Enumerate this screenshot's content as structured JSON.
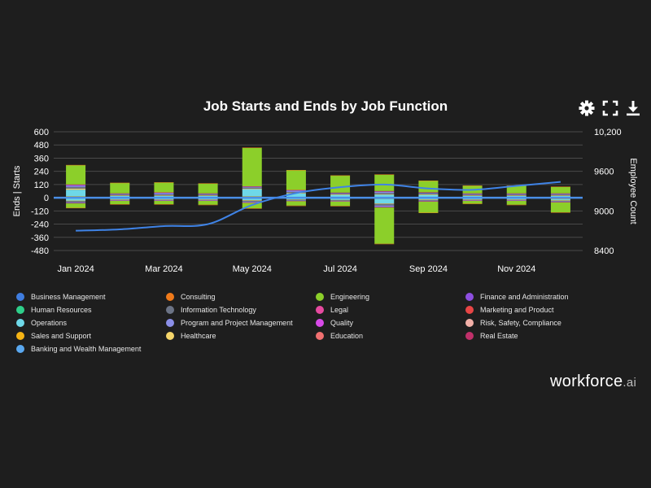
{
  "toolbar": {
    "settings_icon": "gear-icon",
    "fullscreen_icon": "expand-icon",
    "download_icon": "download-icon"
  },
  "colors": {
    "background": "#1e1e1e",
    "grid": "#4a4a4a",
    "zero_line": "#4a8fe7",
    "trend_line": "#3f83e6",
    "text": "#ffffff"
  },
  "brand": {
    "name": "workforce",
    "suffix": ".ai"
  },
  "chart_data": {
    "type": "bar",
    "title": "Job Starts and Ends by Job Function",
    "ylabel": "Ends | Starts",
    "y2label": "Employee Count",
    "ylim": [
      -480,
      600
    ],
    "y_ticks": [
      600,
      480,
      360,
      240,
      120,
      0,
      -120,
      -240,
      -360,
      -480
    ],
    "y_tick_labels": [
      "600",
      "480",
      "360",
      "240",
      "120",
      "0",
      "-120",
      "-240",
      "-360",
      "-480"
    ],
    "y2lim": [
      8400,
      10200
    ],
    "y2_ticks": [
      10200,
      9600,
      9000,
      8400
    ],
    "y2_tick_labels": [
      "10,200",
      "9600",
      "9000",
      "8400"
    ],
    "categories": [
      "Jan 2024",
      "Feb 2024",
      "Mar 2024",
      "Apr 2024",
      "May 2024",
      "Jun 2024",
      "Jul 2024",
      "Aug 2024",
      "Sep 2024",
      "Oct 2024",
      "Nov 2024",
      "Dec 2024"
    ],
    "x_tick_labels": [
      {
        "index": 0,
        "label": "Jan 2024"
      },
      {
        "index": 2,
        "label": "Mar 2024"
      },
      {
        "index": 4,
        "label": "May 2024"
      },
      {
        "index": 6,
        "label": "Jul 2024"
      },
      {
        "index": 8,
        "label": "Sep 2024"
      },
      {
        "index": 10,
        "label": "Nov 2024"
      }
    ],
    "legend": [
      {
        "name": "Business Management",
        "color": "#3f7de0"
      },
      {
        "name": "Consulting",
        "color": "#f07a1a"
      },
      {
        "name": "Engineering",
        "color": "#8ccf2a"
      },
      {
        "name": "Finance and Administration",
        "color": "#8e4fe0"
      },
      {
        "name": "Human Resources",
        "color": "#2ecf8a"
      },
      {
        "name": "Information Technology",
        "color": "#6b7385"
      },
      {
        "name": "Legal",
        "color": "#e64aa0"
      },
      {
        "name": "Marketing and Product",
        "color": "#e84545"
      },
      {
        "name": "Operations",
        "color": "#6ed8e8"
      },
      {
        "name": "Program and Project Management",
        "color": "#8b8fe8"
      },
      {
        "name": "Quality",
        "color": "#d84ae8"
      },
      {
        "name": "Risk, Safety, Compliance",
        "color": "#f2b0a8"
      },
      {
        "name": "Sales and Support",
        "color": "#f5b314"
      },
      {
        "name": "Healthcare",
        "color": "#f5d56a"
      },
      {
        "name": "Education",
        "color": "#f07070"
      },
      {
        "name": "Real Estate",
        "color": "#c0306a"
      },
      {
        "name": "Banking and Wealth Management",
        "color": "#5aa8f0"
      }
    ],
    "series": [
      {
        "name": "Business Management",
        "starts": [
          5,
          3,
          3,
          3,
          8,
          5,
          3,
          5,
          3,
          3,
          3,
          3
        ],
        "ends": [
          -3,
          -2,
          -2,
          -2,
          -5,
          -3,
          -3,
          -8,
          -3,
          -2,
          -2,
          -10
        ]
      },
      {
        "name": "Sales and Support",
        "starts": [
          8,
          3,
          3,
          3,
          5,
          3,
          3,
          3,
          3,
          3,
          3,
          3
        ],
        "ends": [
          -3,
          -2,
          -2,
          -2,
          -3,
          -2,
          -2,
          -3,
          -3,
          -2,
          -2,
          -3
        ]
      },
      {
        "name": "Operations",
        "starts": [
          60,
          10,
          10,
          10,
          65,
          30,
          20,
          20,
          20,
          10,
          10,
          10
        ],
        "ends": [
          -20,
          -10,
          -10,
          -10,
          -15,
          -10,
          -15,
          -40,
          -10,
          -10,
          -10,
          -10
        ]
      },
      {
        "name": "Healthcare",
        "starts": [
          10,
          5,
          5,
          5,
          5,
          5,
          5,
          5,
          5,
          5,
          5,
          5
        ],
        "ends": [
          -5,
          -3,
          -3,
          -3,
          -5,
          -3,
          -3,
          -5,
          -5,
          -3,
          -3,
          -5
        ]
      },
      {
        "name": "Information Technology",
        "starts": [
          15,
          8,
          10,
          8,
          10,
          10,
          5,
          10,
          8,
          8,
          8,
          8
        ],
        "ends": [
          -10,
          -5,
          -5,
          -5,
          -8,
          -5,
          -5,
          -15,
          -5,
          -5,
          -5,
          -5
        ]
      },
      {
        "name": "Program and Project Management",
        "starts": [
          10,
          5,
          10,
          5,
          5,
          10,
          5,
          10,
          5,
          5,
          5,
          5
        ],
        "ends": [
          -5,
          -3,
          -3,
          -3,
          -5,
          -5,
          -3,
          -10,
          -5,
          -3,
          -3,
          -5
        ]
      },
      {
        "name": "Finance and Administration",
        "starts": [
          8,
          3,
          5,
          3,
          3,
          5,
          3,
          5,
          3,
          3,
          3,
          3
        ],
        "ends": [
          -3,
          -2,
          -2,
          -2,
          -3,
          -2,
          -2,
          -5,
          -2,
          -2,
          -2,
          -2
        ]
      },
      {
        "name": "Marketing and Product",
        "starts": [
          5,
          3,
          3,
          3,
          3,
          3,
          3,
          3,
          3,
          3,
          3,
          3
        ],
        "ends": [
          -3,
          -2,
          -2,
          -2,
          -3,
          -2,
          -2,
          -3,
          -3,
          -2,
          -2,
          -3
        ]
      },
      {
        "name": "Engineering",
        "starts": [
          175,
          95,
          90,
          90,
          350,
          180,
          155,
          150,
          105,
          70,
          70,
          60
        ],
        "ends": [
          -40,
          -30,
          -30,
          -35,
          -50,
          -40,
          -40,
          -330,
          -100,
          -25,
          -35,
          -90
        ]
      },
      {
        "name": "Consulting",
        "starts": [
          2,
          1,
          1,
          1,
          2,
          1,
          1,
          1,
          1,
          1,
          1,
          1
        ],
        "ends": [
          -1,
          -1,
          -1,
          -1,
          -1,
          -1,
          -1,
          -1,
          -1,
          -1,
          -1,
          -1
        ]
      }
    ],
    "employee_count": [
      8700,
      8720,
      8770,
      8800,
      9090,
      9270,
      9360,
      9400,
      9340,
      9320,
      9380,
      9440
    ]
  }
}
